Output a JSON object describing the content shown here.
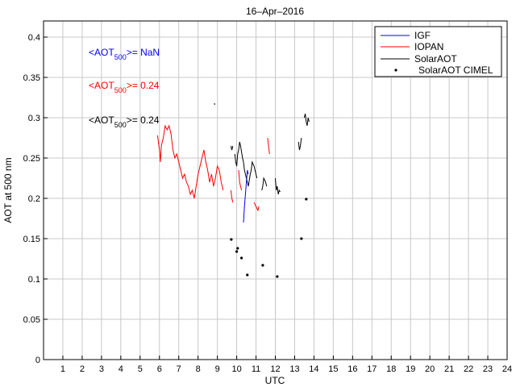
{
  "chart_data": {
    "type": "line",
    "title": "16–Apr–2016",
    "xlabel": "UTC",
    "ylabel": "AOT at 500 nm",
    "xlim": [
      0,
      24
    ],
    "ylim": [
      0,
      0.42
    ],
    "xticks": [
      1,
      2,
      3,
      4,
      5,
      6,
      7,
      8,
      9,
      10,
      11,
      12,
      13,
      14,
      15,
      16,
      17,
      18,
      19,
      20,
      21,
      22,
      23,
      24
    ],
    "yticks": [
      0,
      0.05,
      0.1,
      0.15,
      0.2,
      0.25,
      0.3,
      0.35,
      0.4
    ],
    "ytick_labels": [
      "0",
      "0.05",
      "0.1",
      "0.15",
      "0.2",
      "0.25",
      "0.3",
      "0.35",
      "0.4"
    ],
    "grid": true,
    "legend_position": "top-right",
    "legend": [
      {
        "name": "IGF",
        "color": "#0000ff",
        "marker": "line"
      },
      {
        "name": "IOPAN",
        "color": "#ff0000",
        "marker": "line"
      },
      {
        "name": "SolarAOT",
        "color": "#000000",
        "marker": "line"
      },
      {
        "name": "SolarAOT CIMEL",
        "color": "#000000",
        "marker": "dot"
      }
    ],
    "annotations": [
      {
        "prefix": "<AOT",
        "sub": "500",
        "suffix": ">=  NaN",
        "color": "#0000ff"
      },
      {
        "prefix": "<AOT",
        "sub": "500",
        "suffix": ">= 0.24",
        "color": "#ff0000"
      },
      {
        "prefix": "<AOT",
        "sub": "500",
        "suffix": ">= 0.24",
        "color": "#000000"
      }
    ],
    "series": [
      {
        "color": "#0000ff",
        "segments": [
          [
            [
              10.35,
              0.17
            ],
            [
              10.4,
              0.19
            ],
            [
              10.45,
              0.205
            ],
            [
              10.5,
              0.22
            ],
            [
              10.55,
              0.235
            ],
            [
              10.6,
              0.23
            ]
          ]
        ]
      },
      {
        "color": "#ff0000",
        "segments": [
          [
            [
              5.9,
              0.278
            ],
            [
              6.0,
              0.26
            ],
            [
              6.05,
              0.245
            ],
            [
              6.1,
              0.265
            ],
            [
              6.2,
              0.275
            ],
            [
              6.3,
              0.29
            ],
            [
              6.4,
              0.285
            ],
            [
              6.5,
              0.29
            ],
            [
              6.6,
              0.28
            ],
            [
              6.7,
              0.26
            ],
            [
              6.8,
              0.25
            ],
            [
              6.9,
              0.255
            ],
            [
              7.0,
              0.245
            ],
            [
              7.1,
              0.235
            ],
            [
              7.2,
              0.225
            ],
            [
              7.3,
              0.23
            ],
            [
              7.4,
              0.22
            ],
            [
              7.5,
              0.215
            ],
            [
              7.6,
              0.205
            ],
            [
              7.7,
              0.21
            ],
            [
              7.8,
              0.2
            ],
            [
              7.9,
              0.215
            ],
            [
              8.0,
              0.23
            ],
            [
              8.1,
              0.24
            ],
            [
              8.2,
              0.25
            ],
            [
              8.3,
              0.26
            ],
            [
              8.4,
              0.245
            ],
            [
              8.5,
              0.235
            ],
            [
              8.6,
              0.22
            ],
            [
              8.7,
              0.23
            ],
            [
              8.8,
              0.215
            ],
            [
              8.9,
              0.225
            ],
            [
              9.0,
              0.24
            ],
            [
              9.1,
              0.235
            ],
            [
              9.2,
              0.22
            ],
            [
              9.3,
              0.21
            ]
          ],
          [
            [
              9.7,
              0.21
            ],
            [
              9.75,
              0.2
            ],
            [
              9.8,
              0.195
            ]
          ],
          [
            [
              10.1,
              0.235
            ],
            [
              10.15,
              0.22
            ],
            [
              10.2,
              0.215
            ],
            [
              10.25,
              0.21
            ]
          ],
          [
            [
              10.9,
              0.195
            ],
            [
              11.0,
              0.19
            ],
            [
              11.1,
              0.185
            ],
            [
              11.15,
              0.19
            ]
          ],
          [
            [
              11.6,
              0.275
            ],
            [
              11.65,
              0.265
            ],
            [
              11.7,
              0.255
            ]
          ]
        ]
      },
      {
        "color": "#000000",
        "segments": [
          [
            [
              9.7,
              0.265
            ],
            [
              9.75,
              0.26
            ],
            [
              9.8,
              0.265
            ]
          ],
          [
            [
              9.9,
              0.255
            ],
            [
              9.95,
              0.245
            ],
            [
              10.0,
              0.24
            ],
            [
              10.05,
              0.255
            ],
            [
              10.1,
              0.26
            ],
            [
              10.15,
              0.27
            ],
            [
              10.2,
              0.265
            ],
            [
              10.3,
              0.25
            ],
            [
              10.35,
              0.245
            ],
            [
              10.4,
              0.235
            ],
            [
              10.5,
              0.225
            ],
            [
              10.6,
              0.215
            ],
            [
              10.7,
              0.23
            ],
            [
              10.75,
              0.235
            ],
            [
              10.8,
              0.245
            ],
            [
              10.9,
              0.24
            ],
            [
              11.0,
              0.23
            ],
            [
              11.05,
              0.225
            ]
          ],
          [
            [
              11.3,
              0.21
            ],
            [
              11.35,
              0.215
            ],
            [
              11.4,
              0.225
            ],
            [
              11.5,
              0.22
            ],
            [
              11.55,
              0.215
            ]
          ],
          [
            [
              12.0,
              0.225
            ],
            [
              12.05,
              0.21
            ],
            [
              12.1,
              0.215
            ],
            [
              12.15,
              0.205
            ],
            [
              12.2,
              0.21
            ],
            [
              12.25,
              0.208
            ]
          ],
          [
            [
              13.2,
              0.27
            ],
            [
              13.25,
              0.26
            ],
            [
              13.3,
              0.265
            ],
            [
              13.35,
              0.275
            ]
          ],
          [
            [
              13.5,
              0.3
            ],
            [
              13.55,
              0.305
            ],
            [
              13.6,
              0.295
            ],
            [
              13.65,
              0.29
            ],
            [
              13.7,
              0.3
            ],
            [
              13.75,
              0.295
            ]
          ],
          [
            [
              8.85,
              0.318
            ],
            [
              8.86,
              0.316
            ]
          ]
        ]
      }
    ],
    "cimel_points": [
      [
        9.72,
        0.149
      ],
      [
        10.0,
        0.134
      ],
      [
        10.05,
        0.138
      ],
      [
        10.25,
        0.126
      ],
      [
        10.55,
        0.105
      ],
      [
        11.35,
        0.117
      ],
      [
        12.1,
        0.103
      ],
      [
        13.35,
        0.15
      ],
      [
        13.6,
        0.199
      ]
    ]
  }
}
